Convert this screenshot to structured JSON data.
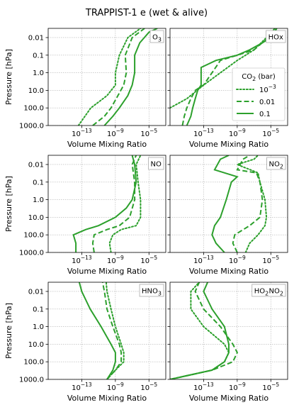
{
  "figure": {
    "title": "TRAPPIST-1 e (wet & alive)"
  },
  "styles": {
    "series_color": "#2ca02c",
    "grid_color": "#b0b0b0"
  },
  "chart_data": [
    {
      "type": "line",
      "species_label": "O3",
      "label_main": "O",
      "label_sub": "3",
      "xlabel": "Volume Mixing Ratio",
      "ylabel": "Pressure [hPa]",
      "xscale": "log",
      "yscale": "log-inverted",
      "xlim": [
        1e-17,
        0.001
      ],
      "ylim": [
        1000,
        0.003
      ],
      "grid": true,
      "series": [
        {
          "name": "10^-3",
          "style": "dotted",
          "points": [
            [
              4e-14,
              1000
            ],
            [
              1.2e-12,
              100
            ],
            [
              1e-10,
              20
            ],
            [
              1e-09,
              5
            ],
            [
              1e-09,
              1
            ],
            [
              3e-09,
              0.1
            ],
            [
              3e-08,
              0.01
            ],
            [
              1e-06,
              0.003
            ]
          ]
        },
        {
          "name": "0.01",
          "style": "dashed",
          "points": [
            [
              2e-12,
              1000
            ],
            [
              5e-11,
              300
            ],
            [
              3e-10,
              100
            ],
            [
              2e-09,
              20
            ],
            [
              1e-08,
              5
            ],
            [
              2e-08,
              1
            ],
            [
              1.5e-08,
              0.1
            ],
            [
              1e-07,
              0.01
            ],
            [
              3e-06,
              0.003
            ]
          ]
        },
        {
          "name": "0.1",
          "style": "solid",
          "points": [
            [
              5e-11,
              1000
            ],
            [
              5e-10,
              300
            ],
            [
              3e-09,
              100
            ],
            [
              3e-08,
              20
            ],
            [
              1e-07,
              5
            ],
            [
              2e-07,
              1
            ],
            [
              2e-07,
              0.1
            ],
            [
              8e-07,
              0.02
            ],
            [
              1e-05,
              0.005
            ],
            [
              0.0001,
              0.003
            ]
          ]
        }
      ]
    },
    {
      "type": "line",
      "species_label": "HOx",
      "label_main": "HOx",
      "label_sub": "",
      "xlabel": "Volume Mixing Ratio",
      "ylabel": "",
      "xscale": "log",
      "yscale": "log-inverted",
      "xlim": [
        1e-17,
        0.001
      ],
      "ylim": [
        1000,
        0.003
      ],
      "grid": true,
      "series": [
        {
          "name": "10^-3",
          "style": "dotted",
          "points": [
            [
              1e-17,
              100
            ],
            [
              1e-15,
              30
            ],
            [
              1e-13,
              5
            ],
            [
              1e-11,
              1
            ],
            [
              1e-09,
              0.2
            ],
            [
              1e-07,
              0.05
            ],
            [
              3e-06,
              0.01
            ],
            [
              3e-05,
              0.003
            ]
          ]
        },
        {
          "name": "0.01",
          "style": "dashed",
          "points": [
            [
              3e-16,
              1000
            ],
            [
              5e-16,
              300
            ],
            [
              1e-15,
              100
            ],
            [
              3e-15,
              30
            ],
            [
              1e-14,
              10
            ],
            [
              1e-13,
              5
            ],
            [
              1e-12,
              1
            ],
            [
              1e-11,
              0.2
            ],
            [
              1e-09,
              0.1
            ],
            [
              1e-07,
              0.05
            ],
            [
              5e-06,
              0.01
            ],
            [
              5e-05,
              0.003
            ]
          ]
        },
        {
          "name": "0.1",
          "style": "solid",
          "points": [
            [
              1e-15,
              1000
            ],
            [
              3e-15,
              300
            ],
            [
              5e-15,
              100
            ],
            [
              1e-14,
              30
            ],
            [
              2e-14,
              10
            ],
            [
              5e-14,
              5
            ],
            [
              5e-14,
              1
            ],
            [
              5e-14,
              0.5
            ],
            [
              3e-12,
              0.2
            ],
            [
              1e-09,
              0.1
            ],
            [
              3e-08,
              0.05
            ],
            [
              1e-06,
              0.02
            ],
            [
              1e-05,
              0.01
            ],
            [
              3e-05,
              0.005
            ],
            [
              5e-05,
              0.003
            ]
          ]
        }
      ],
      "legend": {
        "title_main": "CO",
        "title_sub": "2",
        "title_rest": " (bar)",
        "entries": [
          "10",
          "0.01",
          "0.1"
        ],
        "first_entry_exp": "−3",
        "placement": "right"
      }
    },
    {
      "type": "line",
      "species_label": "NO",
      "label_main": "NO",
      "label_sub": "",
      "xlabel": "Volume Mixing Ratio",
      "ylabel": "Pressure [hPa]",
      "xscale": "log",
      "yscale": "log-inverted",
      "xlim": [
        1e-17,
        0.001
      ],
      "ylim": [
        1000,
        0.003
      ],
      "grid": true,
      "series": [
        {
          "name": "10^-3",
          "style": "dotted",
          "points": [
            [
              3e-10,
              1000
            ],
            [
              2e-10,
              300
            ],
            [
              5e-10,
              100
            ],
            [
              5e-09,
              50
            ],
            [
              3e-07,
              30
            ],
            [
              1e-06,
              10
            ],
            [
              1e-06,
              1
            ],
            [
              5e-07,
              0.1
            ],
            [
              3e-07,
              0.01
            ],
            [
              1e-06,
              0.003
            ]
          ]
        },
        {
          "name": "0.01",
          "style": "dashed",
          "points": [
            [
              3e-12,
              1000
            ],
            [
              2e-12,
              300
            ],
            [
              3e-12,
              100
            ],
            [
              1e-10,
              50
            ],
            [
              3e-09,
              30
            ],
            [
              5e-08,
              10
            ],
            [
              2e-07,
              1
            ],
            [
              2e-07,
              0.1
            ],
            [
              1e-07,
              0.01
            ],
            [
              3e-07,
              0.003
            ]
          ]
        },
        {
          "name": "0.1",
          "style": "solid",
          "points": [
            [
              2e-14,
              1000
            ],
            [
              2e-14,
              300
            ],
            [
              1e-14,
              100
            ],
            [
              3e-13,
              50
            ],
            [
              1e-11,
              30
            ],
            [
              1e-09,
              10
            ],
            [
              2e-08,
              3
            ],
            [
              1e-07,
              1
            ],
            [
              3e-07,
              0.1
            ],
            [
              2e-07,
              0.01
            ],
            [
              1e-07,
              0.003
            ]
          ]
        }
      ]
    },
    {
      "type": "line",
      "species_label": "NO2",
      "label_main": "NO",
      "label_sub": "2",
      "xlabel": "Volume Mixing Ratio",
      "ylabel": "",
      "xscale": "log",
      "yscale": "log-inverted",
      "xlim": [
        1e-17,
        0.001
      ],
      "ylim": [
        1000,
        0.003
      ],
      "grid": true,
      "series": [
        {
          "name": "10^-3",
          "style": "dotted",
          "points": [
            [
              1e-08,
              1000
            ],
            [
              3e-08,
              300
            ],
            [
              3e-07,
              100
            ],
            [
              2e-06,
              30
            ],
            [
              3e-06,
              10
            ],
            [
              2e-06,
              1
            ],
            [
              5e-07,
              0.1
            ],
            [
              3e-07,
              0.03
            ],
            [
              1e-09,
              0.01
            ],
            [
              1e-07,
              0.005
            ],
            [
              3e-07,
              0.003
            ]
          ]
        },
        {
          "name": "0.01",
          "style": "dashed",
          "points": [
            [
              1e-09,
              1000
            ],
            [
              3e-10,
              300
            ],
            [
              5e-10,
              100
            ],
            [
              3e-08,
              30
            ],
            [
              5e-07,
              10
            ],
            [
              1e-06,
              1
            ],
            [
              5e-07,
              0.1
            ],
            [
              2e-07,
              0.03
            ],
            [
              1e-09,
              0.02
            ],
            [
              5e-09,
              0.005
            ],
            [
              3e-08,
              0.003
            ]
          ]
        },
        {
          "name": "0.1",
          "style": "solid",
          "points": [
            [
              3e-11,
              1000
            ],
            [
              3e-12,
              300
            ],
            [
              1e-12,
              100
            ],
            [
              2e-12,
              30
            ],
            [
              1e-11,
              10
            ],
            [
              5e-11,
              1
            ],
            [
              2e-10,
              0.1
            ],
            [
              1e-09,
              0.05
            ],
            [
              2e-12,
              0.02
            ],
            [
              1e-11,
              0.005
            ],
            [
              1e-10,
              0.003
            ]
          ]
        }
      ]
    },
    {
      "type": "line",
      "species_label": "HNO3",
      "label_main": "HNO",
      "label_sub": "3",
      "xlabel": "Volume Mixing Ratio",
      "ylabel": "Pressure [hPa]",
      "xscale": "log",
      "yscale": "log-inverted",
      "xlim": [
        1e-17,
        0.001
      ],
      "ylim": [
        1000,
        0.003
      ],
      "grid": true,
      "series": [
        {
          "name": "10^-3",
          "style": "dotted",
          "points": [
            [
              1e-10,
              1000
            ],
            [
              1e-09,
              300
            ],
            [
              1e-08,
              100
            ],
            [
              1e-08,
              30
            ],
            [
              5e-09,
              10
            ],
            [
              1e-09,
              1
            ],
            [
              3e-10,
              0.1
            ],
            [
              1e-10,
              0.01
            ],
            [
              8e-11,
              0.003
            ]
          ]
        },
        {
          "name": "0.01",
          "style": "dashed",
          "points": [
            [
              1e-10,
              1000
            ],
            [
              1e-09,
              300
            ],
            [
              5e-09,
              100
            ],
            [
              5e-09,
              30
            ],
            [
              3e-09,
              10
            ],
            [
              5e-10,
              1
            ],
            [
              1e-10,
              0.1
            ],
            [
              5e-11,
              0.01
            ],
            [
              3e-11,
              0.003
            ]
          ]
        },
        {
          "name": "0.1",
          "style": "solid",
          "points": [
            [
              1e-10,
              1000
            ],
            [
              5e-10,
              300
            ],
            [
              1e-09,
              100
            ],
            [
              1e-09,
              30
            ],
            [
              3e-10,
              10
            ],
            [
              2e-11,
              1
            ],
            [
              1e-12,
              0.1
            ],
            [
              1e-13,
              0.01
            ],
            [
              5e-14,
              0.003
            ]
          ]
        }
      ]
    },
    {
      "type": "line",
      "species_label": "HO2NO2",
      "label_main": "HO",
      "label_sub": "2",
      "label_main2": "NO",
      "label_sub2": "2",
      "xlabel": "Volume Mixing Ratio",
      "ylabel": "",
      "xscale": "log",
      "yscale": "log-inverted",
      "xlim": [
        1e-17,
        0.001
      ],
      "ylim": [
        1000,
        0.003
      ],
      "grid": true,
      "series": [
        {
          "name": "10^-3",
          "style": "dotted",
          "points": [
            [
              1e-17,
              1000
            ],
            [
              1e-12,
              300
            ],
            [
              3e-11,
              100
            ],
            [
              1e-10,
              30
            ],
            [
              3e-11,
              10
            ],
            [
              1e-13,
              1
            ],
            [
              3e-15,
              0.1
            ],
            [
              3e-15,
              0.01
            ],
            [
              3e-14,
              0.003
            ]
          ]
        },
        {
          "name": "0.01",
          "style": "dashed",
          "points": [
            [
              1e-17,
              1000
            ],
            [
              1e-12,
              300
            ],
            [
              3e-10,
              100
            ],
            [
              1e-09,
              30
            ],
            [
              3e-10,
              10
            ],
            [
              1e-11,
              1
            ],
            [
              1e-13,
              0.1
            ],
            [
              1e-14,
              0.01
            ],
            [
              3e-14,
              0.003
            ]
          ]
        },
        {
          "name": "0.1",
          "style": "solid",
          "points": [
            [
              1e-17,
              1000
            ],
            [
              1e-12,
              300
            ],
            [
              3e-11,
              100
            ],
            [
              1e-10,
              30
            ],
            [
              1e-10,
              10
            ],
            [
              3e-11,
              1
            ],
            [
              1e-12,
              0.1
            ],
            [
              1e-13,
              0.01
            ],
            [
              3e-13,
              0.003
            ]
          ]
        }
      ]
    }
  ]
}
